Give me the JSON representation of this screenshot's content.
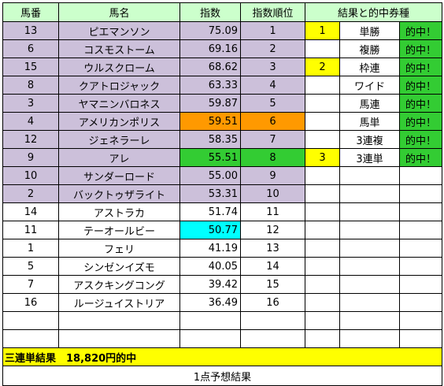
{
  "headers": {
    "num": "馬番",
    "name": "馬名",
    "index": "指数",
    "rank": "指数順位",
    "results": "結果と的中券種"
  },
  "rows": [
    {
      "num": "13",
      "name": "ピエマンソン",
      "index": "75.09",
      "rank": "1",
      "place": "1",
      "bet": "単勝",
      "hit": "的中！"
    },
    {
      "num": "6",
      "name": "コスモストーム",
      "index": "69.16",
      "rank": "2",
      "place": "",
      "bet": "複勝",
      "hit": "的中！"
    },
    {
      "num": "15",
      "name": "ウルスクローム",
      "index": "68.62",
      "rank": "3",
      "place": "2",
      "bet": "枠連",
      "hit": "的中！"
    },
    {
      "num": "8",
      "name": "クアトロジャック",
      "index": "63.33",
      "rank": "4",
      "place": "",
      "bet": "ワイド",
      "hit": "的中！"
    },
    {
      "num": "3",
      "name": "ヤマニンバロネス",
      "index": "59.87",
      "rank": "5",
      "place": "",
      "bet": "馬連",
      "hit": "的中！"
    },
    {
      "num": "4",
      "name": "アメリカンポリス",
      "index": "59.51",
      "rank": "6",
      "place": "",
      "bet": "馬単",
      "hit": "的中！"
    },
    {
      "num": "12",
      "name": "ジェネラーレ",
      "index": "58.35",
      "rank": "7",
      "place": "",
      "bet": "3連複",
      "hit": "的中！"
    },
    {
      "num": "9",
      "name": "アレ",
      "index": "55.51",
      "rank": "8",
      "place": "3",
      "bet": "3連単",
      "hit": "的中！"
    },
    {
      "num": "10",
      "name": "サンダーロード",
      "index": "55.00",
      "rank": "9",
      "place": "",
      "bet": "",
      "hit": ""
    },
    {
      "num": "2",
      "name": "バックトゥザライト",
      "index": "53.31",
      "rank": "10",
      "place": "",
      "bet": "",
      "hit": ""
    },
    {
      "num": "14",
      "name": "アストラカ",
      "index": "51.74",
      "rank": "11",
      "place": "",
      "bet": "",
      "hit": ""
    },
    {
      "num": "11",
      "name": "テーオールビー",
      "index": "50.77",
      "rank": "12",
      "place": "",
      "bet": "",
      "hit": ""
    },
    {
      "num": "1",
      "name": "フェリ",
      "index": "41.19",
      "rank": "13",
      "place": "",
      "bet": "",
      "hit": ""
    },
    {
      "num": "5",
      "name": "シンゼンイズモ",
      "index": "40.05",
      "rank": "14",
      "place": "",
      "bet": "",
      "hit": ""
    },
    {
      "num": "7",
      "name": "アスクキングコング",
      "index": "39.42",
      "rank": "15",
      "place": "",
      "bet": "",
      "hit": ""
    },
    {
      "num": "16",
      "name": "ルージュイストリア",
      "index": "36.49",
      "rank": "16",
      "place": "",
      "bet": "",
      "hit": ""
    },
    {
      "num": "",
      "name": "",
      "index": "",
      "rank": "",
      "place": "",
      "bet": "",
      "hit": ""
    },
    {
      "num": "",
      "name": "",
      "index": "",
      "rank": "",
      "place": "",
      "bet": "",
      "hit": ""
    }
  ],
  "result_text": "三連単結果　18,820円的中",
  "footer_text": "1点予想結果",
  "colors": {
    "header": "#ccffcc",
    "lavender": "#ccc0da",
    "orange": "#ff9900",
    "green": "#33cc33",
    "cyan": "#00ffff",
    "yellow": "#ffff00"
  }
}
